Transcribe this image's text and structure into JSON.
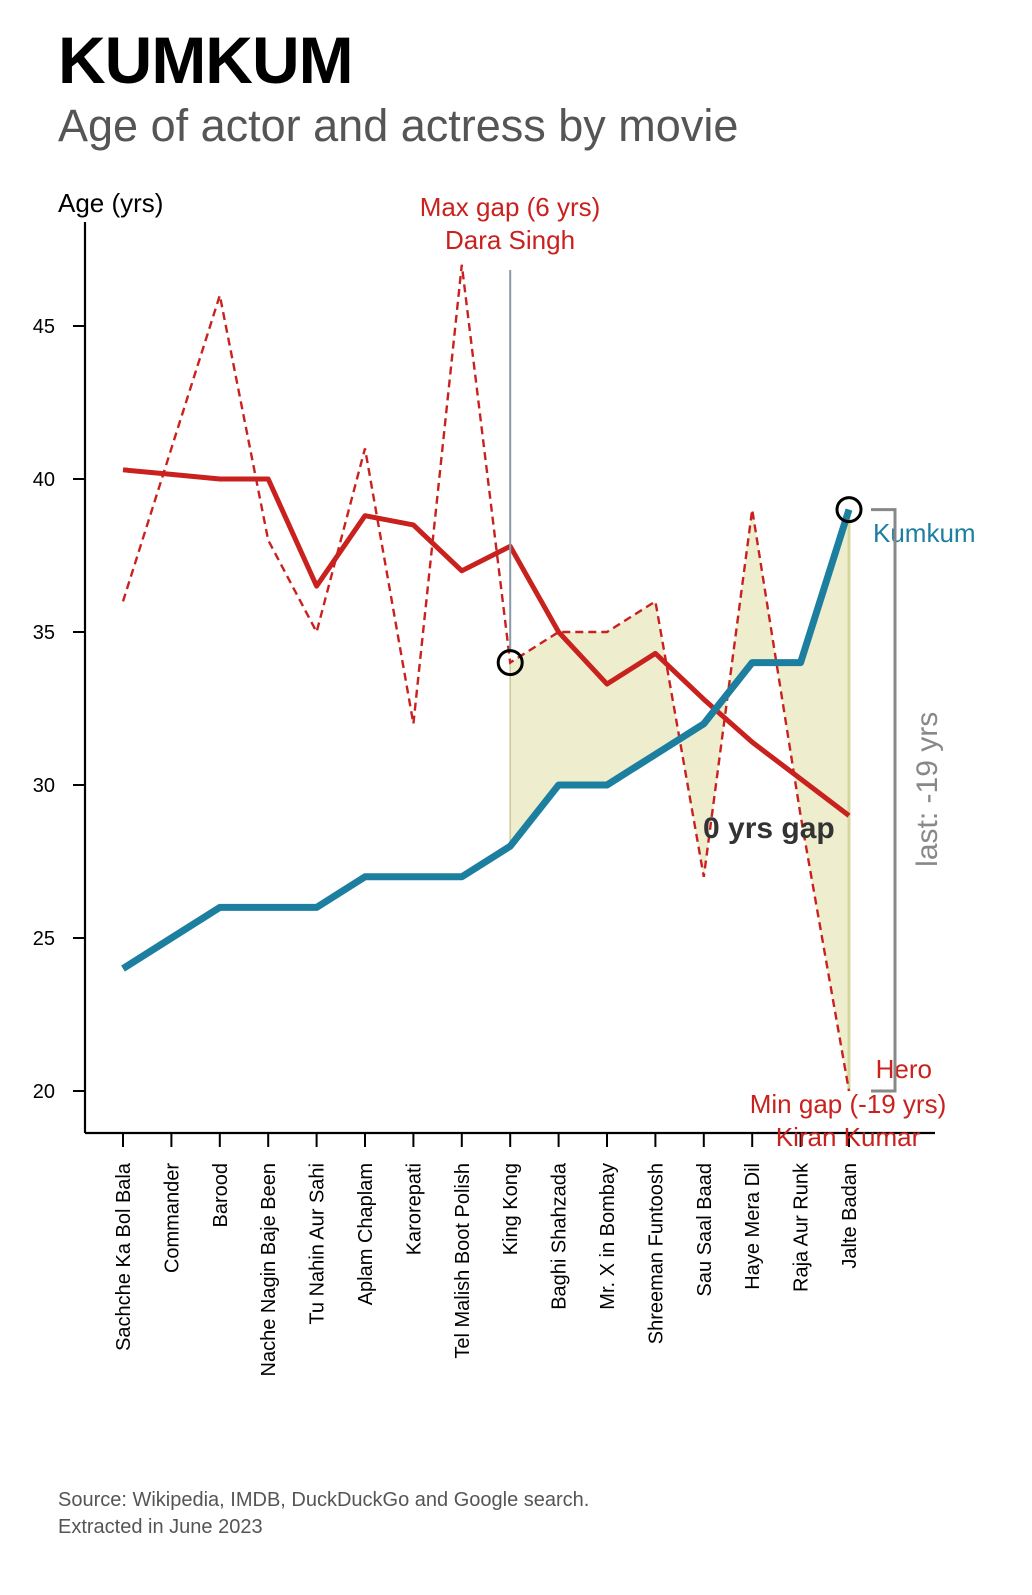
{
  "header": {
    "title": "KUMKUM",
    "subtitle": "Age of actor and actress by movie"
  },
  "footer": {
    "source_line1": "Source: Wikipedia, IMDB, DuckDuckGo and Google search.",
    "source_line2": "Extracted in June 2023"
  },
  "chart_data": {
    "type": "line",
    "title": "KUMKUM",
    "subtitle": "Age of actor and actress by movie",
    "ylabel": "Age (yrs)",
    "xlabel": "",
    "ylim": [
      18.7,
      47.5
    ],
    "yticks": [
      20,
      25,
      30,
      35,
      40,
      45
    ],
    "grid": false,
    "categories": [
      "Sachche Ka Bol Bala",
      "Commander",
      "Barood",
      "Nache Nagin Baje Been",
      "Tu Nahin Aur Sahi",
      "Aplam Chaplam",
      "Karorepati",
      "Tel Malish Boot Polish",
      "King Kong",
      "Baghi Shahzada",
      "Mr. X in Bombay",
      "Shreeman Funtoosh",
      "Sau Saal Baad",
      "Haye Mera Dil",
      "Raja Aur Runk",
      "Jalte Badan"
    ],
    "series": [
      {
        "name": "Kumkum",
        "style": "solid",
        "color": "#1c7fa0",
        "values": [
          24,
          25,
          26,
          26,
          26,
          27,
          27,
          27,
          28,
          30,
          30,
          31,
          32,
          34,
          34,
          39
        ]
      },
      {
        "name": "Hero",
        "style": "dashed",
        "color": "#c9211e",
        "values": [
          36,
          41,
          46,
          38,
          35,
          41,
          32,
          47,
          34,
          35,
          35,
          36,
          27,
          39,
          29,
          20
        ]
      },
      {
        "style": "solid-trend",
        "color": "#c9211e",
        "values": [
          40.3,
          40.15,
          40.0,
          40.0,
          36.5,
          38.8,
          38.5,
          37.0,
          37.8,
          35.0,
          33.3,
          34.3,
          32.8,
          31.4,
          30.2,
          29.0
        ]
      }
    ],
    "shaded_region_from": "King Kong",
    "fill_color": "#eeeecf",
    "annotations": {
      "max_gap_line1": "Max gap (6 yrs)",
      "max_gap_line2": "Dara Singh",
      "min_gap_line1": "Min gap (-19 yrs)",
      "min_gap_line2": "Kiran Kumar",
      "zero_gap": "0 yrs gap",
      "last_gap": "last: -19 yrs",
      "kumkum_label": "Kumkum",
      "hero_label": "Hero"
    }
  }
}
